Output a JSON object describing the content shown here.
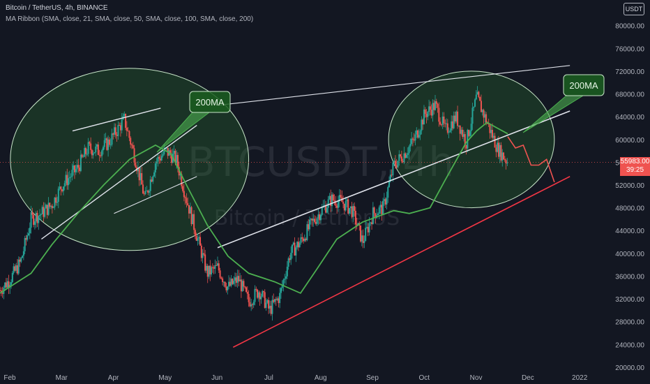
{
  "header": {
    "symbol_line": "Bitcoin / TetherUS, 4h, BINANCE",
    "indicator_line": "MA Ribbon (SMA, close, 21, SMA, close, 50, SMA, close, 100, SMA, close, 200)",
    "currency_label": "USDT"
  },
  "watermark": {
    "ticker": "BTCUSDT, 4h",
    "name": "Bitcoin / TetherUS"
  },
  "last_price": {
    "value": "55983.00",
    "countdown": "39:25",
    "color": "#ef5350"
  },
  "annotations": {
    "left_callout": "200MA",
    "right_callout": "200MA"
  },
  "colors": {
    "background": "#131722",
    "up": "#26a69a",
    "down": "#ef5350",
    "ma": "#4caf50",
    "support": "#f23645",
    "channel": "#e0e3eb",
    "highlight": "#2e7d32"
  },
  "chart_data": {
    "type": "line",
    "title": "Bitcoin / TetherUS, 4h, BINANCE",
    "x_ticks": [
      "Feb",
      "Mar",
      "Apr",
      "May",
      "Jun",
      "Jul",
      "Aug",
      "Sep",
      "Oct",
      "Nov",
      "Dec",
      "2022"
    ],
    "y_ticks": [
      20000,
      24000,
      28000,
      32000,
      36000,
      40000,
      44000,
      48000,
      52000,
      56000,
      60000,
      64000,
      68000,
      72000,
      76000,
      80000
    ],
    "y_tick_labels": [
      "20000.00",
      "24000.00",
      "28000.00",
      "32000.00",
      "36000.00",
      "40000.00",
      "44000.00",
      "48000.00",
      "52000.00",
      "56000.00",
      "60000.00",
      "64000.00",
      "68000.00",
      "72000.00",
      "76000.00",
      "80000.00"
    ],
    "ylim": [
      19500,
      84500
    ],
    "xlim": [
      0,
      11.9
    ],
    "series": [
      {
        "role": "price",
        "x": [
          0,
          0.2,
          0.4,
          0.6,
          0.8,
          1.0,
          1.2,
          1.5,
          1.7,
          1.9,
          2.1,
          2.4,
          2.6,
          2.8,
          3.0,
          3.2,
          3.4,
          3.6,
          3.8,
          4.0,
          4.2,
          4.4,
          4.6,
          4.8,
          5.0,
          5.2,
          5.4,
          5.6,
          5.8,
          6.0,
          6.2,
          6.4,
          6.6,
          6.8,
          7.0,
          7.2,
          7.4,
          7.6,
          7.8,
          8.0,
          8.2,
          8.4,
          8.6,
          8.8,
          9.0,
          9.2,
          9.4,
          9.6,
          9.8
        ],
        "y": [
          33500,
          35500,
          38500,
          46000,
          47000,
          48500,
          52000,
          55000,
          58500,
          58000,
          59500,
          63500,
          57000,
          49500,
          56000,
          58000,
          56500,
          49500,
          43000,
          36500,
          37500,
          34000,
          35500,
          31500,
          33500,
          30000,
          32500,
          40000,
          42000,
          45000,
          47500,
          49500,
          49000,
          47500,
          42000,
          47000,
          48000,
          55500,
          57500,
          60000,
          64500,
          66000,
          61500,
          64000,
          59500,
          67500,
          63000,
          58500,
          56000
        ]
      },
      {
        "role": "sma-200",
        "x": [
          0,
          0.6,
          1.0,
          1.5,
          2.0,
          2.5,
          3.0,
          3.3,
          3.6,
          4.0,
          4.4,
          4.8,
          5.3,
          5.8,
          6.1,
          6.5,
          7.0,
          7.3,
          7.6,
          7.9,
          8.3,
          8.6,
          9.0,
          9.2,
          9.4,
          9.6,
          9.8
        ],
        "y": [
          33000,
          36500,
          41500,
          47000,
          52000,
          56500,
          59000,
          57500,
          52000,
          45000,
          39500,
          36500,
          35000,
          33000,
          37000,
          42500,
          45500,
          46500,
          47500,
          47000,
          48000,
          53000,
          59500,
          61500,
          63000,
          62000,
          61000
        ]
      },
      {
        "role": "projection",
        "x": [
          9.8,
          9.95,
          10.1,
          10.25,
          10.4,
          10.55,
          10.7
        ],
        "y": [
          60500,
          58500,
          59000,
          55500,
          55500,
          56500,
          52500
        ]
      }
    ],
    "trendlines": [
      {
        "role": "support",
        "points": [
          [
            4.5,
            23500
          ],
          [
            11.0,
            53500
          ]
        ]
      },
      {
        "role": "channel-upper",
        "points": [
          [
            4.2,
            66000
          ],
          [
            11.0,
            73000
          ]
        ]
      },
      {
        "role": "channel-lower",
        "points": [
          [
            4.2,
            41000
          ],
          [
            11.0,
            65000
          ]
        ]
      },
      {
        "role": "left-channel-lower",
        "points": [
          [
            0.8,
            42500
          ],
          [
            3.8,
            62500
          ]
        ]
      },
      {
        "role": "left-channel-upper",
        "points": [
          [
            1.4,
            61500
          ],
          [
            3.1,
            65500
          ]
        ]
      },
      {
        "role": "left-slanted",
        "points": [
          [
            2.2,
            47000
          ],
          [
            3.8,
            53500
          ]
        ]
      }
    ],
    "highlight_circles": [
      {
        "center": [
          2.5,
          56500
        ],
        "radius_x": 2.3,
        "radius_y": 16000
      },
      {
        "center": [
          9.1,
          60000
        ],
        "radius_x": 1.6,
        "radius_y": 12000
      }
    ]
  }
}
